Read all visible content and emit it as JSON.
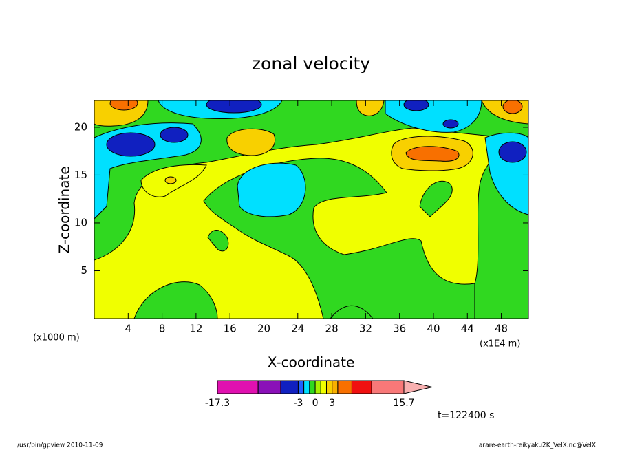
{
  "chart_data": {
    "type": "contour",
    "title": "zonal velocity",
    "x_label": "X-coordinate",
    "y_label": "Z-coordinate",
    "x_unit_left": "(x1000 m)",
    "x_unit_right": "(x1E4 m)",
    "xlim": [
      0,
      51.2
    ],
    "xticks": [
      4,
      8,
      12,
      16,
      20,
      24,
      28,
      32,
      36,
      40,
      44,
      48
    ],
    "ylim": [
      0,
      22.8
    ],
    "yticks": [
      5,
      10,
      15,
      20
    ],
    "colorbar": {
      "levels": [
        -17.3,
        -10.1,
        -6.1,
        -3,
        -2,
        -1,
        0,
        1,
        2,
        3,
        4,
        6.5,
        10,
        15.7
      ],
      "colors": [
        "#e010b0",
        "#8a10b8",
        "#1020c0",
        "#2060ff",
        "#00e0ff",
        "#30d820",
        "#a8f000",
        "#f0ff00",
        "#f8d000",
        "#f8b000",
        "#f87000",
        "#f01010",
        "#f87878"
      ],
      "extend_color": "#f8b0b0",
      "ticks": [
        -17.3,
        -3,
        0,
        3,
        15.7
      ]
    },
    "time_label": "t=122400 s",
    "footer_left": "/usr/bin/gpview  2010-11-09",
    "footer_right": "arare-earth-reikyaku2K_VelX.nc@VelX"
  }
}
